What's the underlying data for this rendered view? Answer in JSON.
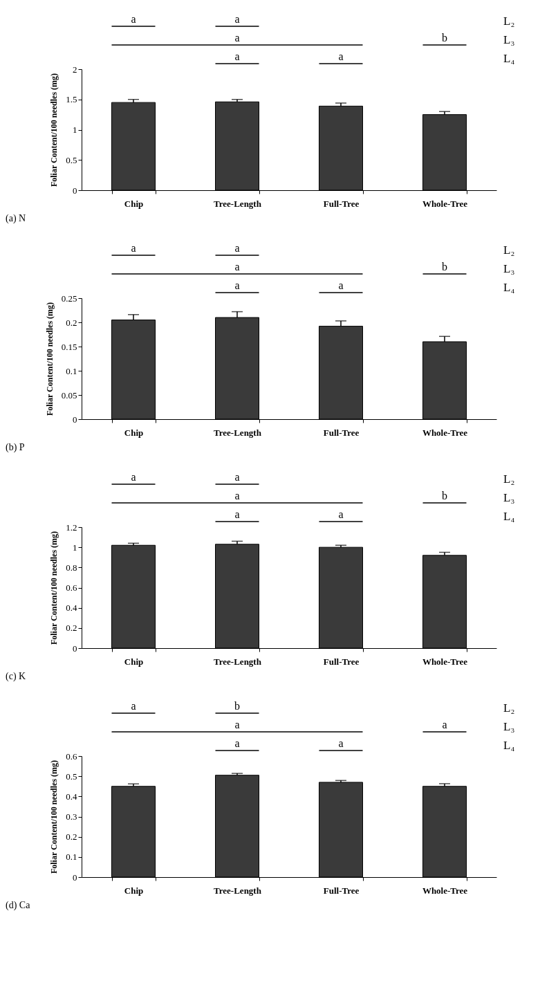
{
  "chart_data": [
    {
      "type": "bar",
      "ylabel": "Foliar Content/100 needles (mg)",
      "categories": [
        "Chip",
        "Tree-Length",
        "Full-Tree",
        "Whole-Tree"
      ],
      "values": [
        1.45,
        1.46,
        1.39,
        1.25
      ],
      "errors": [
        [
          1.45,
          1.5
        ],
        [
          1.46,
          1.5
        ],
        [
          1.39,
          1.44
        ],
        [
          1.25,
          1.3
        ]
      ],
      "color": "#3a3a3a",
      "ylim": [
        0,
        2
      ],
      "yticks": [
        0,
        0.5,
        1,
        1.5,
        2
      ],
      "grid": false,
      "annotations": [
        "a",
        "a",
        "a",
        "b",
        "a",
        "a",
        "L₂",
        "L₃",
        "L₄",
        "(a)  N"
      ]
    },
    {
      "type": "bar",
      "ylabel": "Foliar Content/100 needles (mg)",
      "categories": [
        "Chip",
        "Tree-Length",
        "Full-Tree",
        "Whole-Tree"
      ],
      "values": [
        0.205,
        0.21,
        0.192,
        0.16
      ],
      "errors": [
        [
          0.205,
          0.216
        ],
        [
          0.21,
          0.222
        ],
        [
          0.192,
          0.203
        ],
        [
          0.16,
          0.171
        ]
      ],
      "color": "#3a3a3a",
      "ylim": [
        0,
        0.25
      ],
      "yticks": [
        0,
        0.05,
        0.1,
        0.15,
        0.2,
        0.25
      ],
      "grid": false,
      "annotations": [
        "a",
        "a",
        "a",
        "b",
        "a",
        "a",
        "L₂",
        "L₃",
        "L₄",
        "(b)  P"
      ]
    },
    {
      "type": "bar",
      "ylabel": "Foliar Content/100 needles (mg)",
      "categories": [
        "Chip",
        "Tree-Length",
        "Full-Tree",
        "Whole-Tree"
      ],
      "values": [
        1.02,
        1.03,
        1.0,
        0.92
      ],
      "errors": [
        [
          1.02,
          1.04
        ],
        [
          1.03,
          1.06
        ],
        [
          1.0,
          1.02
        ],
        [
          0.92,
          0.95
        ]
      ],
      "color": "#3a3a3a",
      "ylim": [
        0,
        1.2
      ],
      "yticks": [
        0,
        0.2,
        0.4,
        0.6,
        0.8,
        1,
        1.2
      ],
      "grid": false,
      "annotations": [
        "a",
        "a",
        "a",
        "b",
        "a",
        "a",
        "L₂",
        "L₃",
        "L₄",
        "(c)  K"
      ]
    },
    {
      "type": "bar",
      "ylabel": "Foliar Content/100 needles (mg)",
      "categories": [
        "Chip",
        "Tree-Length",
        "Full-Tree",
        "Whole-Tree"
      ],
      "values": [
        0.45,
        0.505,
        0.47,
        0.45
      ],
      "errors": [
        [
          0.45,
          0.462
        ],
        [
          0.505,
          0.514
        ],
        [
          0.47,
          0.479
        ],
        [
          0.45,
          0.463
        ]
      ],
      "color": "#3a3a3a",
      "ylim": [
        0,
        0.6
      ],
      "yticks": [
        0,
        0.1,
        0.2,
        0.3,
        0.4,
        0.5,
        0.6
      ],
      "grid": false,
      "annotations": [
        "a",
        "b",
        "a",
        "a",
        "a",
        "a",
        "L₂",
        "L₃",
        "L₄",
        "(d)  Ca"
      ]
    }
  ]
}
